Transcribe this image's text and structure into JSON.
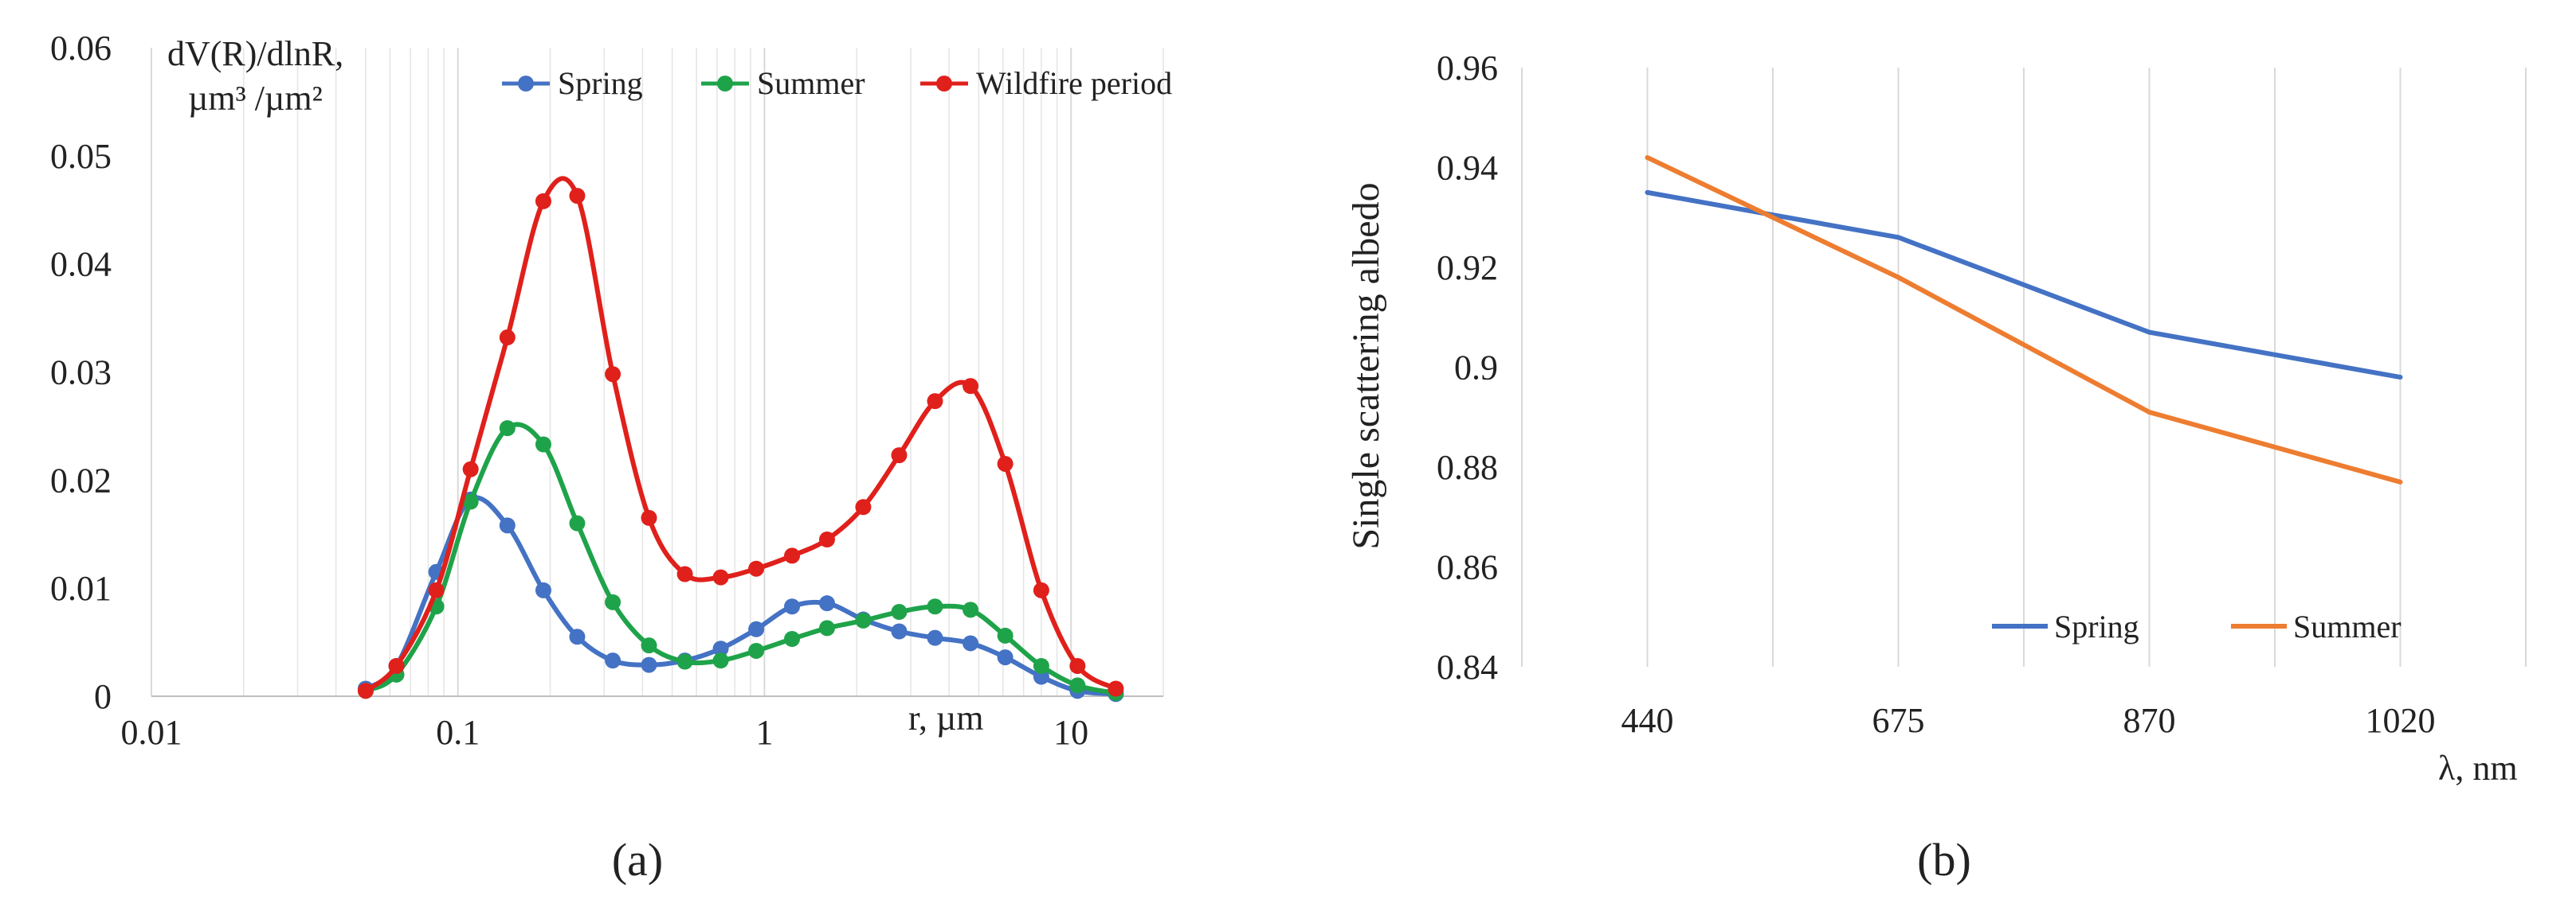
{
  "chart_data": [
    {
      "type": "line",
      "x_scale": "log",
      "x": [
        0.05,
        0.063,
        0.085,
        0.11,
        0.145,
        0.19,
        0.245,
        0.32,
        0.42,
        0.55,
        0.72,
        0.94,
        1.23,
        1.6,
        2.1,
        2.75,
        3.6,
        4.7,
        6.1,
        8.0,
        10.5,
        14.0
      ],
      "series": [
        {
          "name": "Spring",
          "color": "#4472C4",
          "values": [
            0.0007,
            0.0028,
            0.0115,
            0.0182,
            0.0158,
            0.0098,
            0.0055,
            0.0033,
            0.0029,
            0.0033,
            0.0044,
            0.0062,
            0.0083,
            0.0086,
            0.0071,
            0.006,
            0.0054,
            0.0049,
            0.0036,
            0.0018,
            0.0005,
            0.0002
          ]
        },
        {
          "name": "Summer",
          "color": "#1FA34A",
          "values": [
            0.0005,
            0.002,
            0.0083,
            0.018,
            0.0248,
            0.0233,
            0.016,
            0.0087,
            0.0047,
            0.0032,
            0.0033,
            0.0042,
            0.0053,
            0.0063,
            0.007,
            0.0078,
            0.0083,
            0.008,
            0.0056,
            0.0028,
            0.001,
            0.0003
          ]
        },
        {
          "name": "Wildfire period",
          "color": "#E0201B",
          "values": [
            0.0005,
            0.0028,
            0.0098,
            0.021,
            0.0332,
            0.0458,
            0.0463,
            0.0298,
            0.0165,
            0.0113,
            0.011,
            0.0118,
            0.013,
            0.0145,
            0.0175,
            0.0223,
            0.0273,
            0.0287,
            0.0215,
            0.0098,
            0.0028,
            0.0007
          ]
        }
      ],
      "xlim": [
        0.01,
        20
      ],
      "ylim": [
        0,
        0.06
      ],
      "x_ticks": [
        "0.01",
        "0.1",
        "1",
        "10"
      ],
      "y_ticks": [
        "0",
        "0.01",
        "0.02",
        "0.03",
        "0.04",
        "0.05",
        "0.06"
      ],
      "ylabel_line1": "dV(R)/dlnR,",
      "ylabel_line2": "µm³ /µm²",
      "xlabel": "r, µm",
      "legend_position": "top",
      "caption": "(a)"
    },
    {
      "type": "line",
      "categories": [
        "440",
        "675",
        "870",
        "1020"
      ],
      "series": [
        {
          "name": "Spring",
          "color": "#4472C4",
          "values": [
            0.935,
            0.926,
            0.907,
            0.898
          ]
        },
        {
          "name": "Summer",
          "color": "#ED7D31",
          "values": [
            0.942,
            0.918,
            0.891,
            0.877
          ]
        }
      ],
      "ylim": [
        0.84,
        0.96
      ],
      "y_ticks": [
        "0.84",
        "0.86",
        "0.88",
        "0.9",
        "0.92",
        "0.94",
        "0.96"
      ],
      "ylabel": "Single scattering albedo",
      "xlabel": "λ, nm",
      "legend_position": "bottom-right",
      "caption": "(b)"
    }
  ]
}
